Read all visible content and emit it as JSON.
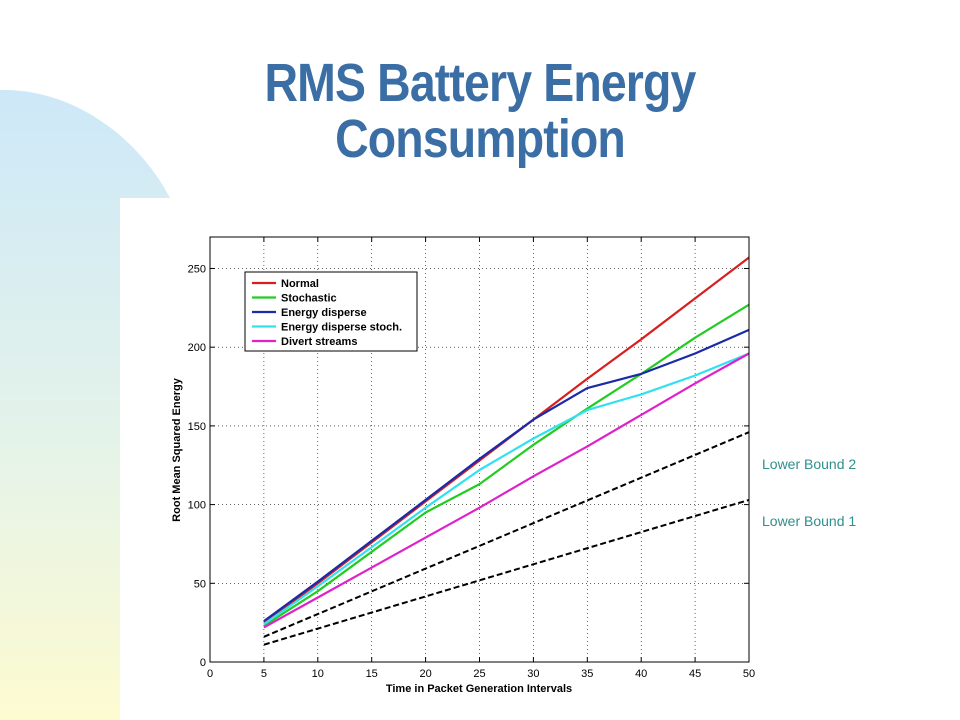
{
  "slide": {
    "title_line1": "RMS Battery Energy",
    "title_line2": "Consumption"
  },
  "colors": {
    "title": "#3a6ea5",
    "annotation": "#2f8f8f",
    "decor_blue": "#cde8f8",
    "decor_yellow": "#fdfbd0"
  },
  "chart_data": {
    "type": "line",
    "title": "",
    "xlabel": "Time in Packet Generation Intervals",
    "ylabel": "Root Mean Squared Energy",
    "xlim": [
      0,
      50
    ],
    "ylim": [
      0,
      270
    ],
    "xticks": [
      0,
      5,
      10,
      15,
      20,
      25,
      30,
      35,
      40,
      45,
      50
    ],
    "yticks": [
      0,
      50,
      100,
      150,
      200,
      250
    ],
    "grid": true,
    "legend_position": "top-left",
    "series": [
      {
        "name": "Normal",
        "color": "#d62020",
        "dash": false,
        "x": [
          5,
          10,
          15,
          20,
          25,
          30,
          35,
          40,
          45,
          50
        ],
        "y": [
          25,
          50,
          76,
          102,
          128,
          154,
          180,
          205,
          231,
          257
        ]
      },
      {
        "name": "Stochastic",
        "color": "#22cc22",
        "dash": false,
        "x": [
          5,
          10,
          15,
          20,
          25,
          30,
          35,
          40,
          45,
          50
        ],
        "y": [
          23,
          45,
          70,
          95,
          113,
          138,
          161,
          183,
          206,
          227
        ]
      },
      {
        "name": "Energy disperse",
        "color": "#1a2aa8",
        "dash": false,
        "x": [
          5,
          10,
          15,
          20,
          25,
          30,
          35,
          40,
          45,
          50
        ],
        "y": [
          26,
          51,
          77,
          103,
          129,
          154,
          174,
          183,
          196,
          211
        ]
      },
      {
        "name": "Energy disperse stoch.",
        "color": "#33e0f0",
        "dash": false,
        "x": [
          5,
          10,
          15,
          20,
          25,
          30,
          35,
          40,
          45,
          50
        ],
        "y": [
          24,
          48,
          73,
          98,
          122,
          142,
          160,
          170,
          182,
          196
        ]
      },
      {
        "name": "Divert streams",
        "color": "#dd22cc",
        "dash": false,
        "x": [
          5,
          10,
          15,
          20,
          25,
          30,
          35,
          40,
          45,
          50
        ],
        "y": [
          22,
          41,
          60,
          79,
          98,
          118,
          137,
          157,
          177,
          196
        ]
      },
      {
        "name": "",
        "color": "#000000",
        "dash": true,
        "x": [
          5,
          50
        ],
        "y": [
          16,
          146
        ]
      },
      {
        "name": "",
        "color": "#000000",
        "dash": true,
        "x": [
          5,
          50
        ],
        "y": [
          11,
          103
        ]
      }
    ],
    "annotations": [
      "Lower Bound 2",
      "Lower Bound 1"
    ]
  }
}
